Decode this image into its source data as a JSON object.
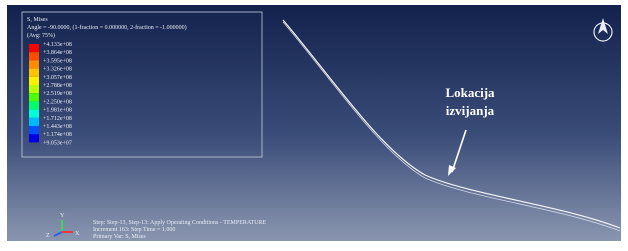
{
  "legend": {
    "title": "S, Mises",
    "subtitle": "Angle = -90.0000, (1-fraction = 0.000000, 2-fraction = -1.000000)",
    "averaging": "(Avg: 75%)",
    "labels": [
      "+4.133e+08",
      "+3.864e+08",
      "+3.595e+08",
      "+3.326e+08",
      "+3.057e+08",
      "+2.788e+08",
      "+2.519e+08",
      "+2.250e+08",
      "+1.981e+08",
      "+1.712e+08",
      "+1.443e+08",
      "+1.174e+08",
      "+9.053e+07"
    ]
  },
  "annotation": {
    "lines": [
      "Lokacija",
      "izvijanja"
    ]
  },
  "status": {
    "lines": [
      "Step: Step-13, Step-13: Apply Operating Conditions - TEMPERATURE",
      "Increment    163: Step Time =    1.000",
      "Primary Var: S, Mises"
    ]
  },
  "triad": {
    "y": "Y",
    "z": "Z",
    "x": "X"
  }
}
